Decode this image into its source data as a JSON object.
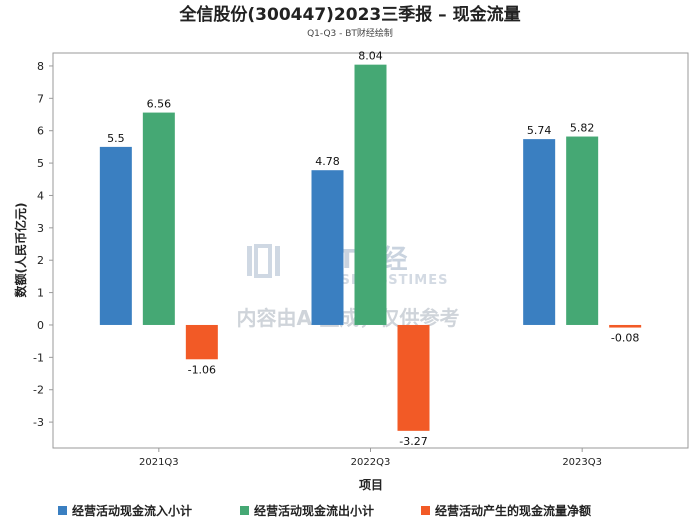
{
  "chart_data": {
    "type": "bar",
    "title": "全信股份(300447)2023三季报 – 现金流量",
    "subtitle": "Q1-Q3 - BT财经绘制",
    "xlabel": "项目",
    "ylabel": "数额(人民币亿元)",
    "categories": [
      "2021Q3",
      "2022Q3",
      "2023Q3"
    ],
    "ylim": [
      -3.8,
      8.4
    ],
    "yticks": [
      8,
      7,
      6,
      5,
      4,
      3,
      2,
      1,
      0,
      -1,
      -2,
      -3
    ],
    "series": [
      {
        "name": "经营活动现金流入小计",
        "values": [
          5.5,
          4.78,
          5.74
        ],
        "labels": [
          "5.5",
          "4.78",
          "5.74"
        ],
        "color": "#3a7fc1"
      },
      {
        "name": "经营活动现金流出小计",
        "values": [
          6.56,
          8.04,
          5.82
        ],
        "labels": [
          "6.56",
          "8.04",
          "5.82"
        ],
        "color": "#45a874"
      },
      {
        "name": "经营活动产生的现金流量净额",
        "values": [
          -1.06,
          -3.27,
          -0.08
        ],
        "labels": [
          "-1.06",
          "-3.27",
          "-0.08"
        ],
        "color": "#f25a26"
      }
    ],
    "legend": "bottom",
    "grid": false
  },
  "watermark": {
    "brand": "BT财经",
    "brand_en": "BUSINESSTIMES",
    "notice": "内容由AI生成，仅供参考"
  }
}
